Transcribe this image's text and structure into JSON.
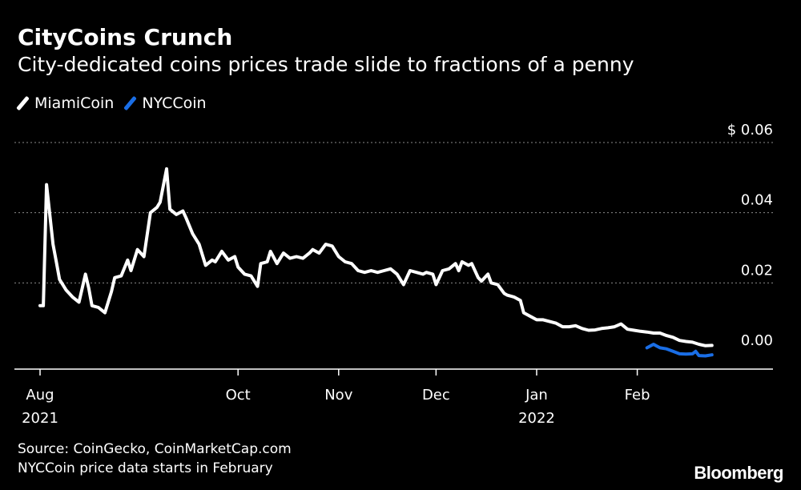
{
  "title": "CityCoins Crunch",
  "subtitle": "City-dedicated coins prices trade slide to fractions of a penny",
  "legend": [
    {
      "label": "MiamiCoin",
      "color": "#ffffff"
    },
    {
      "label": "NYCCoin",
      "color": "#1a6ee6"
    }
  ],
  "source": "Source: CoinGecko, CoinMarketCap.com",
  "note": "NYCCoin price data starts in February",
  "brand": "Bloomberg",
  "chart_data": {
    "type": "line",
    "title": "CityCoins Crunch",
    "subtitle": "City-dedicated coins prices trade slide to fractions of a penny",
    "xlabel": "",
    "ylabel": "",
    "ylim": [
      0,
      0.06
    ],
    "yticks": [
      {
        "value": 0.0,
        "label": "0.00"
      },
      {
        "value": 0.02,
        "label": "0.02"
      },
      {
        "value": 0.04,
        "label": "0.04"
      },
      {
        "value": 0.06,
        "label": "$ 0.06"
      }
    ],
    "xticks": [
      {
        "date": "2021-08-01",
        "label": "Aug",
        "sublabel": "2021"
      },
      {
        "date": "2021-10-01",
        "label": "Oct",
        "sublabel": ""
      },
      {
        "date": "2021-11-01",
        "label": "Nov",
        "sublabel": ""
      },
      {
        "date": "2021-12-01",
        "label": "Dec",
        "sublabel": ""
      },
      {
        "date": "2022-01-01",
        "label": "Jan",
        "sublabel": "2022"
      },
      {
        "date": "2022-02-01",
        "label": "Feb",
        "sublabel": ""
      }
    ],
    "xlim": [
      "2021-08-01",
      "2022-02-28"
    ],
    "grid": true,
    "legend_position": "top-left",
    "series": [
      {
        "name": "MiamiCoin",
        "color": "#ffffff",
        "points": [
          [
            "2021-08-01",
            0.0135
          ],
          [
            "2021-08-02",
            0.0135
          ],
          [
            "2021-08-03",
            0.048
          ],
          [
            "2021-08-05",
            0.031
          ],
          [
            "2021-08-06",
            0.026
          ],
          [
            "2021-08-07",
            0.021
          ],
          [
            "2021-08-09",
            0.018
          ],
          [
            "2021-08-11",
            0.016
          ],
          [
            "2021-08-13",
            0.0145
          ],
          [
            "2021-08-15",
            0.0225
          ],
          [
            "2021-08-16",
            0.0185
          ],
          [
            "2021-08-17",
            0.0135
          ],
          [
            "2021-08-19",
            0.013
          ],
          [
            "2021-08-21",
            0.0115
          ],
          [
            "2021-08-23",
            0.0175
          ],
          [
            "2021-08-24",
            0.0215
          ],
          [
            "2021-08-26",
            0.022
          ],
          [
            "2021-08-28",
            0.0265
          ],
          [
            "2021-08-29",
            0.0235
          ],
          [
            "2021-08-31",
            0.0295
          ],
          [
            "2021-09-02",
            0.0275
          ],
          [
            "2021-09-04",
            0.04
          ],
          [
            "2021-09-06",
            0.0415
          ],
          [
            "2021-09-07",
            0.043
          ],
          [
            "2021-09-09",
            0.0525
          ],
          [
            "2021-09-10",
            0.041
          ],
          [
            "2021-09-12",
            0.0395
          ],
          [
            "2021-09-14",
            0.0405
          ],
          [
            "2021-09-15",
            0.0385
          ],
          [
            "2021-09-17",
            0.034
          ],
          [
            "2021-09-19",
            0.031
          ],
          [
            "2021-09-21",
            0.025
          ],
          [
            "2021-09-23",
            0.0265
          ],
          [
            "2021-09-24",
            0.026
          ],
          [
            "2021-09-26",
            0.029
          ],
          [
            "2021-09-28",
            0.0265
          ],
          [
            "2021-09-30",
            0.0275
          ],
          [
            "2021-10-01",
            0.0245
          ],
          [
            "2021-10-03",
            0.0225
          ],
          [
            "2021-10-05",
            0.022
          ],
          [
            "2021-10-07",
            0.019
          ],
          [
            "2021-10-08",
            0.0255
          ],
          [
            "2021-10-10",
            0.026
          ],
          [
            "2021-10-11",
            0.029
          ],
          [
            "2021-10-13",
            0.0255
          ],
          [
            "2021-10-15",
            0.0285
          ],
          [
            "2021-10-17",
            0.027
          ],
          [
            "2021-10-19",
            0.0275
          ],
          [
            "2021-10-21",
            0.027
          ],
          [
            "2021-10-23",
            0.0285
          ],
          [
            "2021-10-24",
            0.0295
          ],
          [
            "2021-10-26",
            0.0285
          ],
          [
            "2021-10-28",
            0.031
          ],
          [
            "2021-10-30",
            0.0305
          ],
          [
            "2021-11-01",
            0.0275
          ],
          [
            "2021-11-03",
            0.026
          ],
          [
            "2021-11-05",
            0.0255
          ],
          [
            "2021-11-07",
            0.0235
          ],
          [
            "2021-11-09",
            0.023
          ],
          [
            "2021-11-11",
            0.0235
          ],
          [
            "2021-11-13",
            0.023
          ],
          [
            "2021-11-15",
            0.0235
          ],
          [
            "2021-11-17",
            0.024
          ],
          [
            "2021-11-19",
            0.0225
          ],
          [
            "2021-11-21",
            0.0195
          ],
          [
            "2021-11-23",
            0.0235
          ],
          [
            "2021-11-25",
            0.023
          ],
          [
            "2021-11-27",
            0.0225
          ],
          [
            "2021-11-28",
            0.023
          ],
          [
            "2021-11-30",
            0.0225
          ],
          [
            "2021-12-01",
            0.0195
          ],
          [
            "2021-12-03",
            0.0235
          ],
          [
            "2021-12-05",
            0.024
          ],
          [
            "2021-12-07",
            0.0255
          ],
          [
            "2021-12-08",
            0.0235
          ],
          [
            "2021-12-09",
            0.026
          ],
          [
            "2021-12-11",
            0.025
          ],
          [
            "2021-12-12",
            0.0255
          ],
          [
            "2021-12-14",
            0.0215
          ],
          [
            "2021-12-15",
            0.0205
          ],
          [
            "2021-12-17",
            0.0225
          ],
          [
            "2021-12-18",
            0.02
          ],
          [
            "2021-12-20",
            0.0195
          ],
          [
            "2021-12-22",
            0.017
          ],
          [
            "2021-12-23",
            0.0165
          ],
          [
            "2021-12-25",
            0.016
          ],
          [
            "2021-12-27",
            0.015
          ],
          [
            "2021-12-28",
            0.0115
          ],
          [
            "2021-12-30",
            0.0105
          ],
          [
            "2022-01-01",
            0.0095
          ],
          [
            "2022-01-03",
            0.0095
          ],
          [
            "2022-01-05",
            0.009
          ],
          [
            "2022-01-07",
            0.0085
          ],
          [
            "2022-01-09",
            0.0075
          ],
          [
            "2022-01-11",
            0.0075
          ],
          [
            "2022-01-13",
            0.0078
          ],
          [
            "2022-01-15",
            0.007
          ],
          [
            "2022-01-17",
            0.0065
          ],
          [
            "2022-01-19",
            0.0066
          ],
          [
            "2022-01-21",
            0.007
          ],
          [
            "2022-01-23",
            0.0072
          ],
          [
            "2022-01-25",
            0.0075
          ],
          [
            "2022-01-27",
            0.0083
          ],
          [
            "2022-01-29",
            0.0068
          ],
          [
            "2022-01-31",
            0.0065
          ],
          [
            "2022-02-02",
            0.0062
          ],
          [
            "2022-02-04",
            0.006
          ],
          [
            "2022-02-06",
            0.0057
          ],
          [
            "2022-02-08",
            0.0057
          ],
          [
            "2022-02-10",
            0.005
          ],
          [
            "2022-02-12",
            0.0045
          ],
          [
            "2022-02-14",
            0.0036
          ],
          [
            "2022-02-16",
            0.0033
          ],
          [
            "2022-02-18",
            0.0031
          ],
          [
            "2022-02-20",
            0.0025
          ],
          [
            "2022-02-22",
            0.0021
          ],
          [
            "2022-02-24",
            0.0022
          ]
        ]
      },
      {
        "name": "NYCCoin",
        "color": "#1a6ee6",
        "points": [
          [
            "2022-02-04",
            0.0015
          ],
          [
            "2022-02-06",
            0.0025
          ],
          [
            "2022-02-07",
            0.002
          ],
          [
            "2022-02-08",
            0.0015
          ],
          [
            "2022-02-10",
            0.0012
          ],
          [
            "2022-02-12",
            0.0005
          ],
          [
            "2022-02-14",
            -0.0002
          ],
          [
            "2022-02-16",
            -0.0003
          ],
          [
            "2022-02-18",
            -0.0002
          ],
          [
            "2022-02-19",
            0.0005
          ],
          [
            "2022-02-20",
            -0.0007
          ],
          [
            "2022-02-22",
            -0.0008
          ],
          [
            "2022-02-24",
            -0.0005
          ]
        ]
      }
    ]
  }
}
